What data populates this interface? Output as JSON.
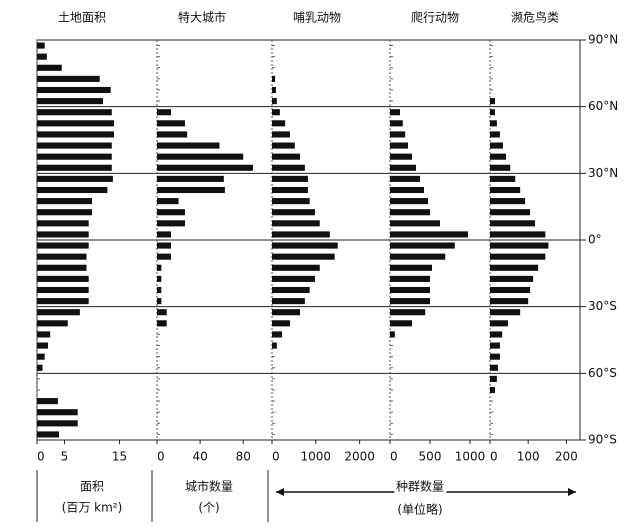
{
  "chart_data": [
    {
      "type": "barh",
      "title": "土地面积",
      "xlabel": [
        "面积",
        "(百万 km²)"
      ],
      "xlim": [
        0,
        16
      ],
      "xticks": [
        0,
        5,
        15
      ],
      "values": [
        1.4,
        1.8,
        4.5,
        11.4,
        13.4,
        12,
        13.6,
        14,
        14,
        13.6,
        13.6,
        13.6,
        13.8,
        12.8,
        10,
        10,
        9.4,
        9.4,
        9.4,
        9,
        9,
        9.4,
        9.4,
        9.4,
        7.8,
        5.6,
        2.4,
        2,
        1.4,
        1,
        0,
        0,
        3.8,
        7.4,
        7.4,
        4
      ]
    },
    {
      "type": "barh",
      "title": "特大城市",
      "xlabel": [
        "城市数量",
        "(个)"
      ],
      "xlim": [
        0,
        90
      ],
      "xticks": [
        0,
        40,
        80
      ],
      "values": [
        0,
        0,
        0,
        0,
        0,
        0,
        13,
        26,
        28,
        58,
        80,
        89,
        62,
        63,
        20,
        26,
        26,
        13,
        13,
        13,
        4,
        4,
        4,
        4,
        9,
        9,
        0,
        0,
        0,
        0,
        0,
        0,
        0,
        0,
        0,
        0
      ]
    },
    {
      "type": "barh",
      "title": "哺乳动物",
      "xlim": [
        0,
        2100
      ],
      "xticks": [
        0,
        1000,
        2000
      ],
      "values": [
        0,
        0,
        0,
        70,
        90,
        110,
        180,
        300,
        410,
        520,
        640,
        750,
        820,
        820,
        860,
        980,
        1090,
        1320,
        1500,
        1430,
        1090,
        980,
        860,
        750,
        640,
        410,
        230,
        110,
        0,
        0,
        0,
        0,
        0,
        0,
        0,
        0
      ]
    },
    {
      "type": "barh",
      "title": "爬行动物",
      "xlim": [
        0,
        1100
      ],
      "xticks": [
        0,
        500,
        1000
      ],
      "values": [
        0,
        0,
        0,
        0,
        0,
        0,
        125,
        160,
        190,
        225,
        275,
        325,
        375,
        425,
        475,
        500,
        625,
        975,
        810,
        690,
        525,
        500,
        500,
        500,
        440,
        275,
        60,
        0,
        0,
        0,
        0,
        0,
        0,
        0,
        0,
        0
      ]
    },
    {
      "type": "barh",
      "title": "濒危鸟类",
      "xlim": [
        0,
        220
      ],
      "xticks": [
        0,
        100,
        200
      ],
      "values": [
        0,
        0,
        0,
        0,
        0,
        13,
        13,
        18,
        26,
        34,
        42,
        53,
        66,
        79,
        92,
        105,
        118,
        145,
        153,
        145,
        126,
        113,
        105,
        100,
        79,
        47,
        32,
        26,
        26,
        21,
        18,
        13,
        0,
        0,
        0,
        0
      ]
    }
  ],
  "latitude": {
    "bins": [
      90,
      85,
      80,
      75,
      70,
      65,
      60,
      55,
      50,
      45,
      40,
      35,
      30,
      25,
      20,
      15,
      10,
      5,
      0,
      -5,
      -10,
      -15,
      -20,
      -25,
      -30,
      -35,
      -40,
      -45,
      -50,
      -55,
      -60,
      -65,
      -70,
      -75,
      -80,
      -85,
      -90
    ],
    "ylim": [
      90,
      -90
    ],
    "yticks": [
      {
        "value": 90,
        "label": "90°N"
      },
      {
        "value": 60,
        "label": "60°N"
      },
      {
        "value": 30,
        "label": "30°N"
      },
      {
        "value": 0,
        "label": "0°"
      },
      {
        "value": -30,
        "label": "30°S"
      },
      {
        "value": -60,
        "label": "60°S"
      },
      {
        "value": -90,
        "label": "90°S"
      }
    ]
  },
  "shared_xlabel": [
    "种群数量",
    "(单位略)"
  ]
}
